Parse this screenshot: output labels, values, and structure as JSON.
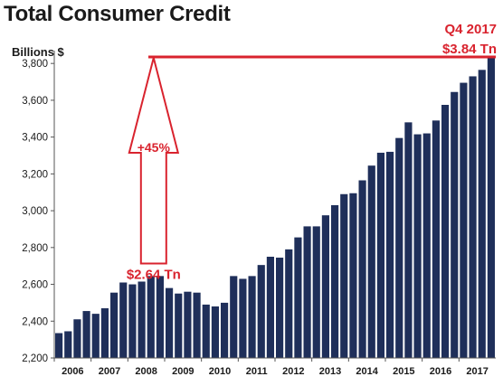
{
  "header": {
    "title": "Total Consumer Credit",
    "y_unit": "Billions $",
    "period_label": "Q4 2017",
    "period_value": "$3.84 Tn"
  },
  "colors": {
    "bar": "#1f2f5a",
    "accent": "#d9232e",
    "axis": "#555555"
  },
  "chart_data": {
    "type": "bar",
    "title": "Total Consumer Credit",
    "ylabel": "Billions $",
    "xlabel": "",
    "ylim": [
      2200,
      3850
    ],
    "yticks": [
      2200,
      2400,
      2600,
      2800,
      3000,
      3200,
      3400,
      3600,
      3800
    ],
    "ytick_labels": [
      "2,200",
      "2,400",
      "2,600",
      "2,800",
      "3,000",
      "3,200",
      "3,400",
      "3,600",
      "3,800"
    ],
    "years": [
      "2006",
      "2007",
      "2008",
      "2009",
      "2010",
      "2011",
      "2012",
      "2013",
      "2014",
      "2015",
      "2016",
      "2017"
    ],
    "quarters_per_year": 4,
    "values": [
      2335,
      2345,
      2410,
      2455,
      2440,
      2470,
      2555,
      2610,
      2600,
      2615,
      2645,
      2645,
      2580,
      2550,
      2560,
      2555,
      2490,
      2480,
      2500,
      2645,
      2630,
      2645,
      2705,
      2750,
      2745,
      2790,
      2855,
      2915,
      2915,
      2975,
      3030,
      3090,
      3095,
      3165,
      3245,
      3315,
      3320,
      3395,
      3480,
      3415,
      3420,
      3490,
      3575,
      3645,
      3695,
      3730,
      3765,
      3840
    ],
    "grid": false,
    "annotations": {
      "low_value": "$2.64 Tn",
      "change": "+45%",
      "high_label": "Q4 2017",
      "high_value": "$3.84 Tn"
    }
  }
}
